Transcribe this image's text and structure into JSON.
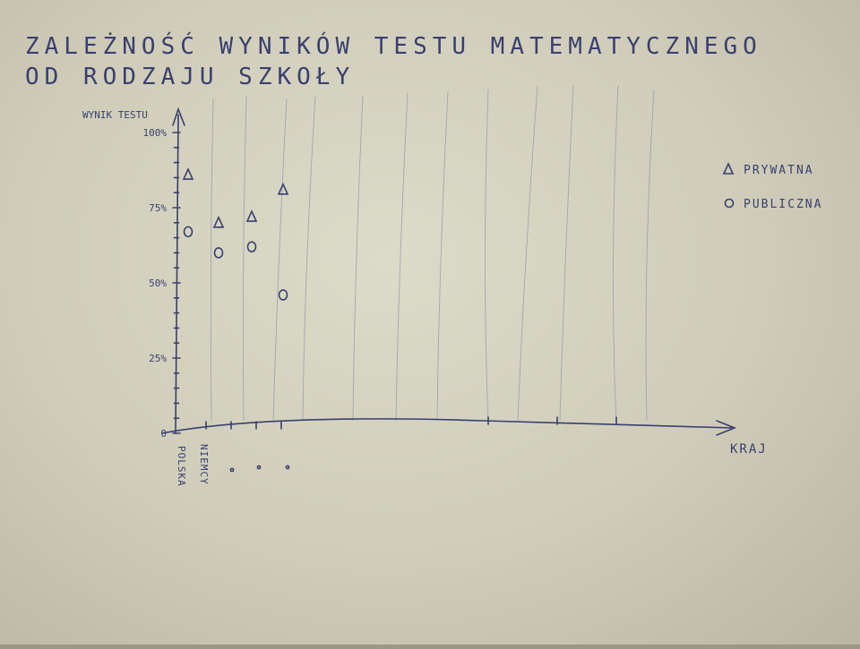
{
  "chart_data": {
    "type": "scatter",
    "title": "ZALEŻNOŚĆ WYNIKÓW TESTU MATEMATYCZNEGO",
    "subtitle": "OD RODZAJU SZKOŁY",
    "xlabel": "KRAJ",
    "ylabel": "WYNIK TESTU",
    "ylim": [
      0,
      100
    ],
    "y_ticks": [
      {
        "value": 100,
        "label": "100%"
      },
      {
        "value": 75,
        "label": "75%"
      },
      {
        "value": 50,
        "label": "50%"
      },
      {
        "value": 25,
        "label": "25%"
      },
      {
        "value": 0,
        "label": "0"
      }
    ],
    "categories": [
      "POLSKA",
      "NIEMCY",
      "",
      "",
      ""
    ],
    "series": [
      {
        "name": "PRYWATNA",
        "marker": "triangle",
        "values": [
          86,
          70,
          72,
          81
        ]
      },
      {
        "name": "PUBLICZNA",
        "marker": "circle",
        "values": [
          67,
          60,
          62,
          46
        ]
      }
    ],
    "legend": "right",
    "grid": false,
    "ink_color": "#3a3f6e"
  }
}
